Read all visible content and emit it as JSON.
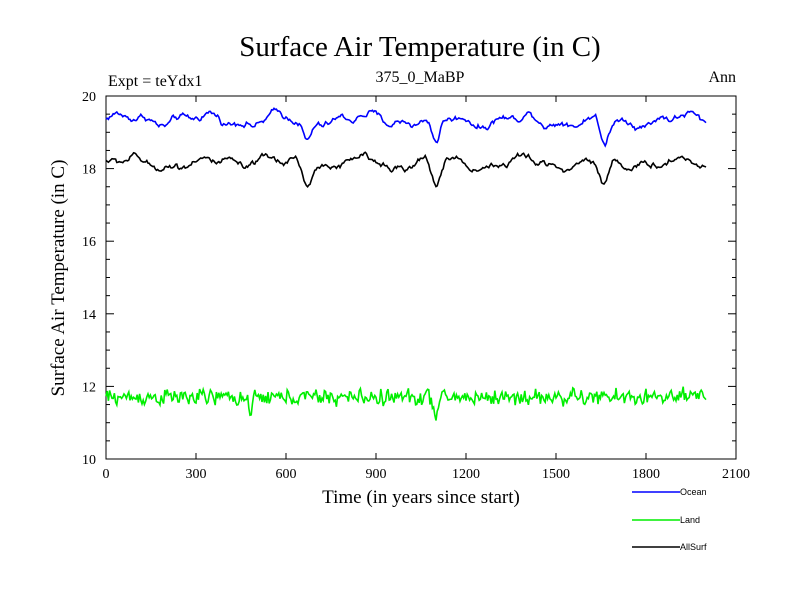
{
  "chart_data": {
    "type": "line",
    "title": "Surface Air Temperature (in C)",
    "subtitle_left": "Expt = teYdx1",
    "subtitle_center": "375_0_MaBP",
    "subtitle_right": "Ann",
    "xlabel": "Time (in years since start)",
    "ylabel": "Surface Air Temperature (in C)",
    "xlim": [
      0,
      2100
    ],
    "ylim": [
      10,
      20
    ],
    "xticks": [
      0,
      300,
      600,
      900,
      1200,
      1500,
      1800,
      2100
    ],
    "yticks": [
      10,
      12,
      14,
      16,
      18,
      20
    ],
    "x_range_of_data": [
      0,
      2000
    ],
    "sample_step_years": 4,
    "series": [
      {
        "name": "Ocean",
        "color": "#0000ff",
        "approx_mean": 19.35,
        "approx_min": 18.55,
        "approx_max": 19.9,
        "notable_dips": [
          [
            670,
            18.7
          ],
          [
            1100,
            18.6
          ],
          [
            1660,
            18.55
          ]
        ]
      },
      {
        "name": "Land",
        "color": "#00ee00",
        "approx_mean": 11.7,
        "approx_min": 11.05,
        "approx_max": 12.25,
        "notable_dips": [
          [
            1100,
            11.05
          ],
          [
            480,
            11.15
          ]
        ]
      },
      {
        "name": "AllSurf",
        "color": "#000000",
        "approx_mean": 18.15,
        "approx_min": 17.5,
        "approx_max": 18.6,
        "notable_dips": [
          [
            670,
            17.6
          ],
          [
            1100,
            17.5
          ],
          [
            1660,
            17.5
          ]
        ]
      }
    ],
    "legend_placement": "bottom-right"
  }
}
